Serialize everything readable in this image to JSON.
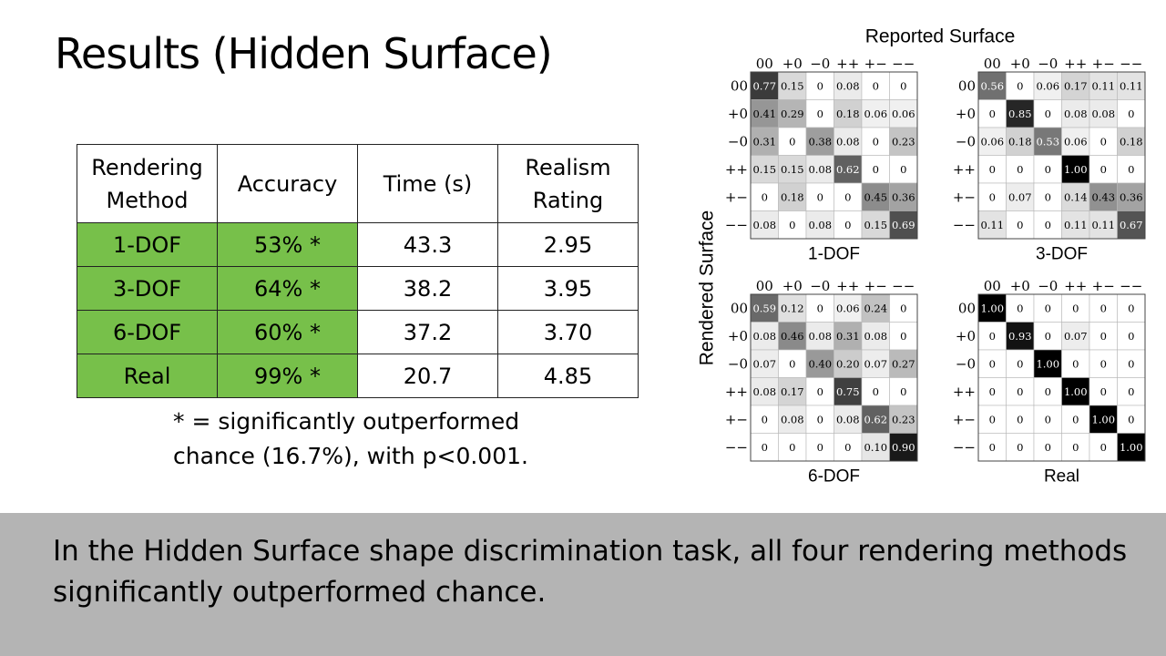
{
  "slide": {
    "title": "Results (Hidden Surface)"
  },
  "table": {
    "headers": [
      "Rendering\nMethod",
      "Accuracy",
      "Time (s)",
      "Realism\nRating"
    ],
    "rows": [
      [
        "1-DOF",
        "53% *",
        "43.3",
        "2.95"
      ],
      [
        "3-DOF",
        "64% *",
        "38.2",
        "3.95"
      ],
      [
        "6-DOF",
        "60% *",
        "37.2",
        "3.70"
      ],
      [
        "Real",
        "99% *",
        "20.7",
        "4.85"
      ]
    ],
    "highlight_color": "#77c04a"
  },
  "footnote": {
    "line1": "* = significantly outperformed",
    "line2": "chance (16.7%), with p<0.001."
  },
  "caption": {
    "text": "In the Hidden Surface shape discrimination task, all four rendering methods significantly outperformed chance."
  },
  "chart_data": {
    "type": "heatmap",
    "x_title": "Reported Surface",
    "y_title": "Rendered Surface",
    "labels": [
      "00",
      "+0",
      "−0",
      "++",
      "+−",
      "−−"
    ],
    "matrices": [
      {
        "name": "1-DOF",
        "values": [
          [
            0.77,
            0.15,
            0,
            0.08,
            0,
            0
          ],
          [
            0.41,
            0.29,
            0,
            0.18,
            0.06,
            0.06
          ],
          [
            0.31,
            0,
            0.38,
            0.08,
            0,
            0.23
          ],
          [
            0.15,
            0.15,
            0.08,
            0.62,
            0,
            0
          ],
          [
            0,
            0.18,
            0,
            0,
            0.45,
            0.36
          ],
          [
            0.08,
            0,
            0.08,
            0,
            0.15,
            0.69
          ]
        ]
      },
      {
        "name": "3-DOF",
        "values": [
          [
            0.56,
            0,
            0.06,
            0.17,
            0.11,
            0.11
          ],
          [
            0,
            0.85,
            0,
            0.08,
            0.08,
            0
          ],
          [
            0.06,
            0.18,
            0.53,
            0.06,
            0,
            0.18
          ],
          [
            0,
            0,
            0,
            1.0,
            0,
            0
          ],
          [
            0,
            0.07,
            0,
            0.14,
            0.43,
            0.36
          ],
          [
            0.11,
            0,
            0,
            0.11,
            0.11,
            0.67
          ]
        ]
      },
      {
        "name": "6-DOF",
        "values": [
          [
            0.59,
            0.12,
            0,
            0.06,
            0.24,
            0
          ],
          [
            0.08,
            0.46,
            0.08,
            0.31,
            0.08,
            0
          ],
          [
            0.07,
            0,
            0.4,
            0.2,
            0.07,
            0.27
          ],
          [
            0.08,
            0.17,
            0,
            0.75,
            0,
            0
          ],
          [
            0,
            0.08,
            0,
            0.08,
            0.62,
            0.23
          ],
          [
            0,
            0,
            0,
            0,
            0.1,
            0.9
          ]
        ]
      },
      {
        "name": "Real",
        "values": [
          [
            1.0,
            0,
            0,
            0,
            0,
            0
          ],
          [
            0,
            0.93,
            0,
            0.07,
            0,
            0
          ],
          [
            0,
            0,
            1.0,
            0,
            0,
            0
          ],
          [
            0,
            0,
            0,
            1.0,
            0,
            0
          ],
          [
            0,
            0,
            0,
            0,
            1.0,
            0
          ],
          [
            0,
            0,
            0,
            0,
            0,
            1.0
          ]
        ]
      }
    ]
  }
}
